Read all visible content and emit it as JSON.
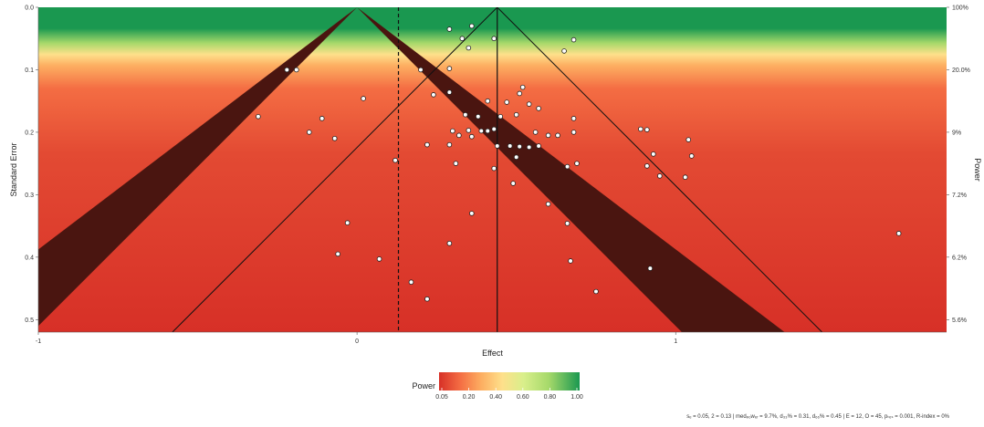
{
  "chart_data": {
    "type": "scatter",
    "subtype": "sunset funnel plot",
    "xlabel": "Effect",
    "ylabel": "Standard Error",
    "right_axis_label": "Power",
    "xlim": [
      -1.0,
      1.85
    ],
    "ylim": [
      0,
      0.52
    ],
    "x_ticks": [
      -1,
      0,
      1
    ],
    "x_tick_labels": [
      "-1",
      "0",
      "1"
    ],
    "y_ticks": [
      0.0,
      0.1,
      0.2,
      0.3,
      0.4,
      0.5
    ],
    "y_tick_labels": [
      "0.0",
      "0.1",
      "0.2",
      "0.3",
      "0.4",
      "0.5"
    ],
    "right_ticks": [
      {
        "se": 0.0,
        "label": "100%"
      },
      {
        "se": 0.1,
        "label": "20.0%"
      },
      {
        "se": 0.2,
        "label": "9%"
      },
      {
        "se": 0.3,
        "label": "7.2%"
      },
      {
        "se": 0.4,
        "label": "6.2%"
      },
      {
        "se": 0.5,
        "label": "5.6%"
      }
    ],
    "null_effect": 0,
    "pooled_effect": 0.44,
    "power_reference_effect": 0.13,
    "legend": {
      "title": "Power",
      "position": "bottom",
      "ticks": [
        "0.05",
        "0.20",
        "0.40",
        "0.60",
        "0.80",
        "1.00"
      ],
      "colors": [
        "#d73027",
        "#f46d43",
        "#fdae61",
        "#fee08b",
        "#d9ef8b",
        "#a6d96a",
        "#1a9850"
      ]
    },
    "points": [
      {
        "x": 0.36,
        "y": 0.03
      },
      {
        "x": 0.33,
        "y": 0.05
      },
      {
        "x": 0.29,
        "y": 0.035
      },
      {
        "x": 0.43,
        "y": 0.05
      },
      {
        "x": 0.68,
        "y": 0.052
      },
      {
        "x": 0.65,
        "y": 0.07
      },
      {
        "x": 0.35,
        "y": 0.065
      },
      {
        "x": -0.22,
        "y": 0.1
      },
      {
        "x": -0.19,
        "y": 0.1
      },
      {
        "x": 0.2,
        "y": 0.1
      },
      {
        "x": 0.29,
        "y": 0.098
      },
      {
        "x": 0.52,
        "y": 0.128
      },
      {
        "x": 0.51,
        "y": 0.138
      },
      {
        "x": 0.24,
        "y": 0.14
      },
      {
        "x": 0.29,
        "y": 0.136
      },
      {
        "x": 0.02,
        "y": 0.146
      },
      {
        "x": 0.41,
        "y": 0.15
      },
      {
        "x": 0.47,
        "y": 0.152
      },
      {
        "x": 0.54,
        "y": 0.155
      },
      {
        "x": 0.57,
        "y": 0.162
      },
      {
        "x": -0.31,
        "y": 0.175
      },
      {
        "x": 0.34,
        "y": 0.172
      },
      {
        "x": 0.38,
        "y": 0.175
      },
      {
        "x": 0.45,
        "y": 0.175
      },
      {
        "x": 0.5,
        "y": 0.172
      },
      {
        "x": 0.68,
        "y": 0.178
      },
      {
        "x": -0.11,
        "y": 0.178
      },
      {
        "x": -0.15,
        "y": 0.2
      },
      {
        "x": 0.43,
        "y": 0.195
      },
      {
        "x": 0.3,
        "y": 0.198
      },
      {
        "x": 0.35,
        "y": 0.197
      },
      {
        "x": 0.39,
        "y": 0.198
      },
      {
        "x": 0.41,
        "y": 0.198
      },
      {
        "x": 0.56,
        "y": 0.2
      },
      {
        "x": 0.6,
        "y": 0.205
      },
      {
        "x": 0.63,
        "y": 0.205
      },
      {
        "x": 0.68,
        "y": 0.2
      },
      {
        "x": 0.89,
        "y": 0.195
      },
      {
        "x": 0.91,
        "y": 0.196
      },
      {
        "x": 0.32,
        "y": 0.205
      },
      {
        "x": 0.36,
        "y": 0.207
      },
      {
        "x": -0.07,
        "y": 0.21
      },
      {
        "x": 1.04,
        "y": 0.212
      },
      {
        "x": 0.22,
        "y": 0.22
      },
      {
        "x": 0.29,
        "y": 0.22
      },
      {
        "x": 0.44,
        "y": 0.222
      },
      {
        "x": 0.48,
        "y": 0.222
      },
      {
        "x": 0.51,
        "y": 0.223
      },
      {
        "x": 0.54,
        "y": 0.224
      },
      {
        "x": 0.57,
        "y": 0.222
      },
      {
        "x": 0.93,
        "y": 0.235
      },
      {
        "x": 1.05,
        "y": 0.238
      },
      {
        "x": 0.12,
        "y": 0.245
      },
      {
        "x": 0.5,
        "y": 0.24
      },
      {
        "x": 0.31,
        "y": 0.25
      },
      {
        "x": 0.66,
        "y": 0.255
      },
      {
        "x": 0.69,
        "y": 0.25
      },
      {
        "x": 0.91,
        "y": 0.254
      },
      {
        "x": 0.43,
        "y": 0.258
      },
      {
        "x": 0.95,
        "y": 0.27
      },
      {
        "x": 1.03,
        "y": 0.272
      },
      {
        "x": 0.49,
        "y": 0.282
      },
      {
        "x": 0.6,
        "y": 0.315
      },
      {
        "x": 0.36,
        "y": 0.33
      },
      {
        "x": -0.03,
        "y": 0.345
      },
      {
        "x": 0.66,
        "y": 0.346
      },
      {
        "x": 1.7,
        "y": 0.362
      },
      {
        "x": 0.29,
        "y": 0.378
      },
      {
        "x": -0.06,
        "y": 0.395
      },
      {
        "x": 0.07,
        "y": 0.403
      },
      {
        "x": 0.67,
        "y": 0.406
      },
      {
        "x": 0.92,
        "y": 0.418
      },
      {
        "x": 0.17,
        "y": 0.44
      },
      {
        "x": 0.75,
        "y": 0.455
      },
      {
        "x": 0.22,
        "y": 0.467
      }
    ],
    "footer_note": "sₑ = 0.05, 2 = 0.13 | medₚₒwₑᵣ = 9.7%, d₃₃% = 0.31, d₆₆% = 0.45 | E = 12, O = 45, pₜₑₛ = 0.001, R-index = 0%"
  }
}
